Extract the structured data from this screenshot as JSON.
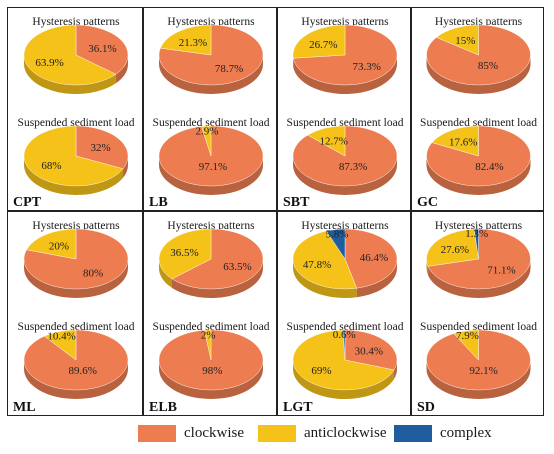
{
  "colors": {
    "clockwise": "#ED7D51",
    "anticlockwise": "#F5C219",
    "complex": "#1F5D9E",
    "panel_border": "#222222"
  },
  "legend": {
    "clockwise": "clockwise",
    "anticlockwise": "anticlockwise",
    "complex": "complex"
  },
  "chart_data": [
    {
      "type": "pie",
      "site": "CPT",
      "top": {
        "title": "Hysteresis patterns",
        "slices": [
          {
            "category": "clockwise",
            "value": 36.1,
            "label": "36.1%"
          },
          {
            "category": "anticlockwise",
            "value": 63.9,
            "label": "63.9%"
          }
        ]
      },
      "bottom": {
        "title": "Suspended sediment load",
        "slices": [
          {
            "category": "clockwise",
            "value": 32,
            "label": "32%"
          },
          {
            "category": "anticlockwise",
            "value": 68,
            "label": "68%"
          }
        ]
      }
    },
    {
      "type": "pie",
      "site": "LB",
      "top": {
        "title": "Hysteresis patterns",
        "slices": [
          {
            "category": "clockwise",
            "value": 78.7,
            "label": "78.7%"
          },
          {
            "category": "anticlockwise",
            "value": 21.3,
            "label": "21.3%"
          }
        ]
      },
      "bottom": {
        "title": "Suspended sediment load",
        "slices": [
          {
            "category": "clockwise",
            "value": 97.1,
            "label": "97.1%"
          },
          {
            "category": "anticlockwise",
            "value": 2.9,
            "label": "2.9%"
          }
        ]
      }
    },
    {
      "type": "pie",
      "site": "SBT",
      "top": {
        "title": "Hysteresis patterns",
        "slices": [
          {
            "category": "clockwise",
            "value": 73.3,
            "label": "73.3%"
          },
          {
            "category": "anticlockwise",
            "value": 26.7,
            "label": "26.7%"
          }
        ]
      },
      "bottom": {
        "title": "Suspended sediment load",
        "slices": [
          {
            "category": "clockwise",
            "value": 87.3,
            "label": "87.3%"
          },
          {
            "category": "anticlockwise",
            "value": 12.7,
            "label": "12.7%"
          }
        ]
      }
    },
    {
      "type": "pie",
      "site": "GC",
      "top": {
        "title": "Hysteresis patterns",
        "slices": [
          {
            "category": "clockwise",
            "value": 85,
            "label": "85%"
          },
          {
            "category": "anticlockwise",
            "value": 15,
            "label": "15%"
          }
        ]
      },
      "bottom": {
        "title": "Suspended sediment load",
        "slices": [
          {
            "category": "clockwise",
            "value": 82.4,
            "label": "82.4%"
          },
          {
            "category": "anticlockwise",
            "value": 17.6,
            "label": "17.6%"
          }
        ]
      }
    },
    {
      "type": "pie",
      "site": "ML",
      "top": {
        "title": "Hysteresis patterns",
        "slices": [
          {
            "category": "clockwise",
            "value": 80,
            "label": "80%"
          },
          {
            "category": "anticlockwise",
            "value": 20,
            "label": "20%"
          }
        ]
      },
      "bottom": {
        "title": "Suspended sediment load",
        "slices": [
          {
            "category": "clockwise",
            "value": 89.6,
            "label": "89.6%"
          },
          {
            "category": "anticlockwise",
            "value": 10.4,
            "label": "10.4%"
          }
        ]
      }
    },
    {
      "type": "pie",
      "site": "ELB",
      "top": {
        "title": "Hysteresis patterns",
        "slices": [
          {
            "category": "clockwise",
            "value": 63.5,
            "label": "63.5%"
          },
          {
            "category": "anticlockwise",
            "value": 36.5,
            "label": "36.5%"
          }
        ]
      },
      "bottom": {
        "title": "Suspended sediment load",
        "slices": [
          {
            "category": "clockwise",
            "value": 98,
            "label": "98%"
          },
          {
            "category": "anticlockwise",
            "value": 2,
            "label": "2%"
          }
        ]
      }
    },
    {
      "type": "pie",
      "site": "LGT",
      "top": {
        "title": "Hysteresis patterns",
        "slices": [
          {
            "category": "clockwise",
            "value": 46.4,
            "label": "46.4%"
          },
          {
            "category": "anticlockwise",
            "value": 47.8,
            "label": "47.8%"
          },
          {
            "category": "complex",
            "value": 5.8,
            "label": "5.8%"
          }
        ]
      },
      "bottom": {
        "title": "Suspended sediment load",
        "slices": [
          {
            "category": "clockwise",
            "value": 30.4,
            "label": "30.4%"
          },
          {
            "category": "anticlockwise",
            "value": 69,
            "label": "69%"
          },
          {
            "category": "complex",
            "value": 0.6,
            "label": "0.6%"
          }
        ]
      }
    },
    {
      "type": "pie",
      "site": "SD",
      "top": {
        "title": "Hysteresis patterns",
        "slices": [
          {
            "category": "clockwise",
            "value": 71.1,
            "label": "71.1%"
          },
          {
            "category": "anticlockwise",
            "value": 27.6,
            "label": "27.6%"
          },
          {
            "category": "complex",
            "value": 1.3,
            "label": "1.3%"
          }
        ]
      },
      "bottom": {
        "title": "Suspended sediment load",
        "slices": [
          {
            "category": "clockwise",
            "value": 92.1,
            "label": "92.1%"
          },
          {
            "category": "anticlockwise",
            "value": 7.9,
            "label": "7.9%"
          }
        ]
      }
    }
  ]
}
